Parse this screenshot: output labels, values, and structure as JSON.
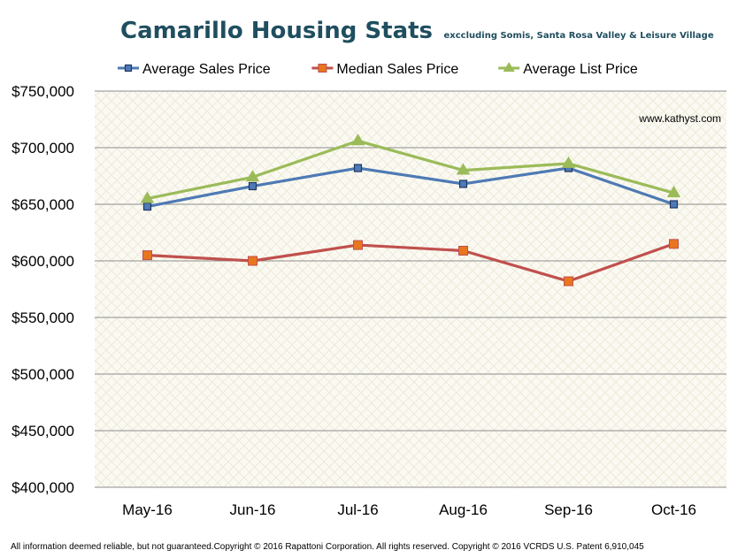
{
  "chart_data": {
    "type": "line",
    "title": "Camarillo Housing Stats",
    "subtitle": "exccluding Somis, Santa Rosa Valley & Leisure Village",
    "categories": [
      "May-16",
      "Jun-16",
      "Jul-16",
      "Aug-16",
      "Sep-16",
      "Oct-16"
    ],
    "series": [
      {
        "name": "Average Sales Price",
        "color": "#4e7ab5",
        "marker": "square",
        "values": [
          648000,
          666000,
          682000,
          668000,
          682000,
          650000
        ]
      },
      {
        "name": "Median Sales Price",
        "color": "#c0504d",
        "marker": "square",
        "marker_fill": "#e8761e",
        "values": [
          605000,
          600000,
          614000,
          609000,
          582000,
          615000
        ]
      },
      {
        "name": "Average List Price",
        "color": "#9bbb59",
        "marker": "triangle",
        "values": [
          655000,
          674000,
          706000,
          680000,
          686000,
          660000
        ]
      }
    ],
    "ylim": [
      400000,
      750000
    ],
    "yticks": [
      400000,
      450000,
      500000,
      550000,
      600000,
      650000,
      700000,
      750000
    ],
    "ytick_labels": [
      "$400,000",
      "$450,000",
      "$500,000",
      "$550,000",
      "$600,000",
      "$650,000",
      "$700,000",
      "$750,000"
    ],
    "xlabel": "",
    "ylabel": "",
    "grid": true,
    "legend_position": "top",
    "annotation": "www.kathyst.com",
    "title_color": "#1f4e5f"
  },
  "footer": "All information deemed reliable, but not guaranteed.Copyright © 2016 Rapattoni Corporation. All rights reserved. Copyright © 2016 VCRDS U.S. Patent 6,910,045"
}
